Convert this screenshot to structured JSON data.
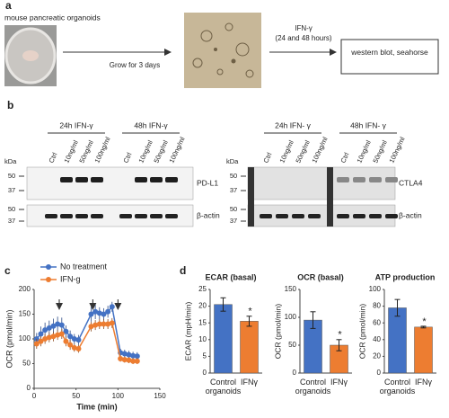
{
  "panel_a": {
    "label": "a",
    "title": "mouse pancreatic organoids",
    "step": "Grow for 3 days",
    "treatment": "IFN-γ",
    "duration": "(24 and 48 hours)",
    "box": "western blot, seahorse"
  },
  "panel_b": {
    "label": "b",
    "left": {
      "groups": [
        "24h IFN-γ",
        "48h IFN-γ"
      ],
      "lanes": [
        "Ctrl",
        "10ng/ml",
        "50ng/ml",
        "100ng/ml",
        "Ctrl",
        "10ng/ml",
        "50ng/ml",
        "100ng/ml"
      ],
      "unit": "kDa",
      "upper_markers": [
        50,
        37
      ],
      "upper_label": "PD-L1",
      "lower_markers": [
        50,
        37
      ],
      "lower_label": "β-actin"
    },
    "right": {
      "groups": [
        "24h IFN- γ",
        "48h IFN- γ"
      ],
      "lanes": [
        "Ctrl",
        "10ng/ml",
        "50ng/ml",
        "100ng/ml",
        "Ctrl",
        "10ng/ml",
        "50ng/ml",
        "100ng/ml"
      ],
      "unit": "kDa",
      "upper_markers": [
        50,
        37
      ],
      "upper_label": "CTLA4",
      "lower_markers": [
        50,
        37
      ],
      "lower_label": "β-actin"
    }
  },
  "panel_c": {
    "label": "c"
  },
  "panel_d": {
    "label": "d"
  },
  "chart_data": [
    {
      "type": "line",
      "xlabel": "Time (min)",
      "ylabel": "OCR (pmol/min)",
      "xlim": [
        0,
        150
      ],
      "xticks": [
        0,
        50,
        100,
        150
      ],
      "ylim": [
        0,
        200
      ],
      "yticks": [
        0,
        50,
        100,
        150,
        200
      ],
      "x": [
        3,
        8,
        13,
        18,
        23,
        28,
        33,
        38,
        43,
        48,
        53,
        68,
        73,
        78,
        83,
        88,
        93,
        103,
        108,
        113,
        118,
        123
      ],
      "arrows": [
        30,
        70,
        100
      ],
      "series": [
        {
          "name": "No treatment",
          "color": "#4472c4",
          "values": [
            100,
            110,
            118,
            122,
            126,
            130,
            128,
            115,
            105,
            100,
            98,
            150,
            155,
            152,
            150,
            155,
            165,
            72,
            70,
            68,
            66,
            65
          ],
          "errors": [
            12,
            15,
            15,
            15,
            15,
            15,
            15,
            12,
            12,
            10,
            10,
            15,
            15,
            12,
            12,
            12,
            10,
            8,
            8,
            8,
            8,
            8
          ]
        },
        {
          "name": "IFN-g",
          "color": "#ed7d31",
          "values": [
            90,
            95,
            100,
            103,
            105,
            108,
            110,
            95,
            88,
            82,
            80,
            125,
            128,
            130,
            130,
            130,
            132,
            60,
            58,
            57,
            55,
            55
          ],
          "errors": [
            10,
            10,
            10,
            10,
            10,
            10,
            10,
            10,
            10,
            8,
            8,
            10,
            10,
            10,
            10,
            10,
            10,
            6,
            6,
            6,
            6,
            6
          ]
        }
      ]
    },
    {
      "type": "bar",
      "title": "ECAR (basal)",
      "ylabel": "ECAR (mpH/min)",
      "categories": [
        "Control organoids",
        "IFNγ"
      ],
      "values": [
        20.5,
        15.5
      ],
      "errors": [
        2,
        1.5
      ],
      "colors": [
        "#4472c4",
        "#ed7d31"
      ],
      "significance_label": "*",
      "ylim": [
        0,
        25
      ],
      "yticks": [
        0,
        5,
        10,
        15,
        20,
        25
      ]
    },
    {
      "type": "bar",
      "title": "OCR (basal)",
      "ylabel": "OCR (pmol/min)",
      "categories": [
        "Control organoids",
        "IFNγ"
      ],
      "values": [
        95,
        50
      ],
      "errors": [
        15,
        10
      ],
      "colors": [
        "#4472c4",
        "#ed7d31"
      ],
      "significance_label": "*",
      "ylim": [
        0,
        150
      ],
      "yticks": [
        0,
        50,
        100,
        150
      ]
    },
    {
      "type": "bar",
      "title": "ATP production",
      "ylabel": "OCR (pmol/min)",
      "categories": [
        "Control organoids",
        "IFNγ"
      ],
      "values": [
        78,
        55
      ],
      "errors": [
        10,
        1
      ],
      "colors": [
        "#4472c4",
        "#ed7d31"
      ],
      "significance_label": "*",
      "ylim": [
        0,
        100
      ],
      "yticks": [
        0,
        20,
        40,
        60,
        80,
        100
      ]
    }
  ]
}
